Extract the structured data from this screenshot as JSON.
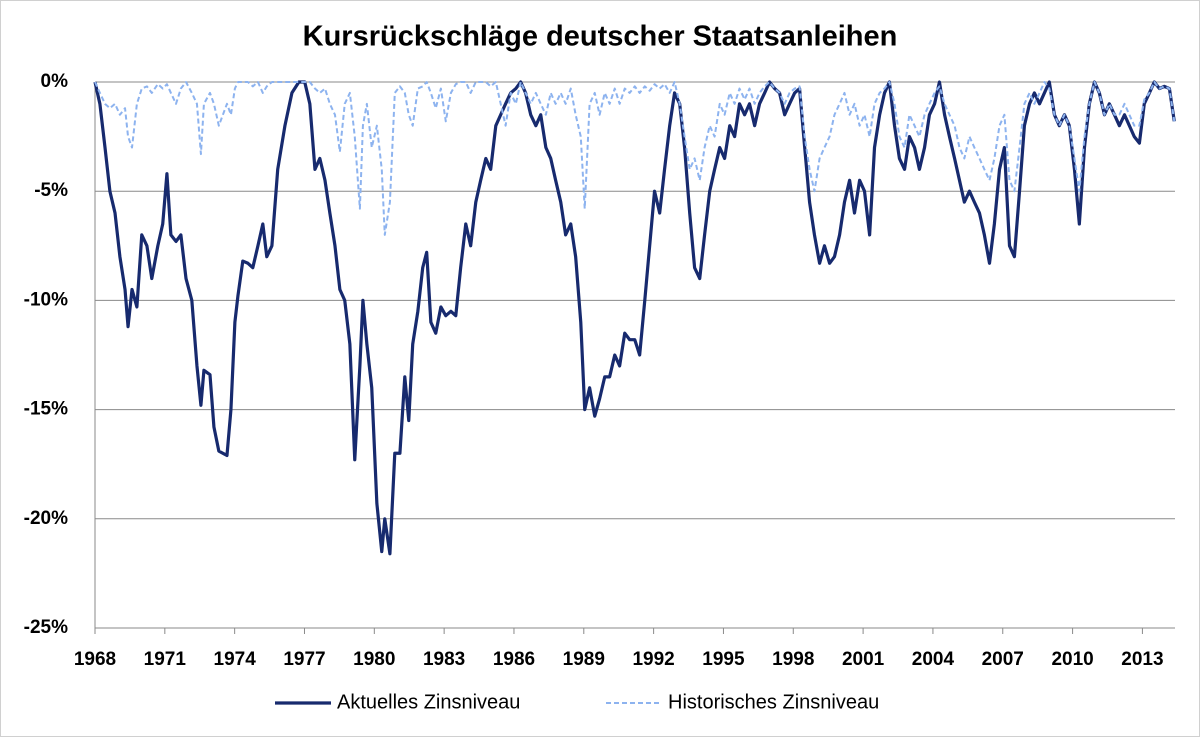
{
  "chart_data": {
    "type": "line",
    "title": "Kursrückschläge deutscher Staatsanleihen",
    "x": [
      1968,
      1968.21,
      1968.43,
      1968.64,
      1968.86,
      1969.07,
      1969.29,
      1969.42,
      1969.59,
      1969.8,
      1970.01,
      1970.23,
      1970.44,
      1970.7,
      1970.91,
      1971.09,
      1971.26,
      1971.48,
      1971.69,
      1971.91,
      1972.16,
      1972.38,
      1972.55,
      1972.68,
      1972.94,
      1973.11,
      1973.32,
      1973.67,
      1973.84,
      1974.01,
      1974.14,
      1974.35,
      1974.57,
      1974.78,
      1975,
      1975.21,
      1975.38,
      1975.6,
      1975.85,
      1976.16,
      1976.46,
      1976.76,
      1977.01,
      1977.23,
      1977.45,
      1977.66,
      1977.88,
      1978.09,
      1978.31,
      1978.52,
      1978.73,
      1978.95,
      1979.16,
      1979.38,
      1979.51,
      1979.68,
      1979.89,
      1980.11,
      1980.32,
      1980.45,
      1980.67,
      1980.88,
      1981.1,
      1981.31,
      1981.48,
      1981.65,
      1981.87,
      1982.08,
      1982.25,
      1982.43,
      1982.64,
      1982.86,
      1983.07,
      1983.29,
      1983.5,
      1983.71,
      1983.93,
      1984.14,
      1984.36,
      1984.57,
      1984.79,
      1985,
      1985.22,
      1985.43,
      1985.64,
      1985.86,
      1986.08,
      1986.29,
      1986.5,
      1986.72,
      1986.94,
      1987.15,
      1987.37,
      1987.58,
      1987.79,
      1988.01,
      1988.22,
      1988.44,
      1988.65,
      1988.87,
      1989.04,
      1989.25,
      1989.47,
      1989.68,
      1989.9,
      1990.11,
      1990.33,
      1990.54,
      1990.76,
      1990.97,
      1991.19,
      1991.4,
      1991.62,
      1991.83,
      1992.04,
      1992.26,
      1992.47,
      1992.69,
      1992.9,
      1993.12,
      1993.33,
      1993.55,
      1993.76,
      1993.98,
      1994.19,
      1994.41,
      1994.62,
      1994.84,
      1995.05,
      1995.27,
      1995.48,
      1995.69,
      1995.91,
      1996.12,
      1996.34,
      1996.55,
      1996.77,
      1996.98,
      1997.2,
      1997.41,
      1997.63,
      1997.84,
      1998.06,
      1998.27,
      1998.49,
      1998.7,
      1998.91,
      1999.13,
      1999.34,
      1999.56,
      1999.77,
      1999.99,
      2000.2,
      2000.42,
      2000.63,
      2000.85,
      2001.06,
      2001.28,
      2001.49,
      2001.71,
      2001.92,
      2002.13,
      2002.35,
      2002.56,
      2002.78,
      2002.99,
      2003.21,
      2003.42,
      2003.64,
      2003.85,
      2004.07,
      2004.28,
      2004.5,
      2004.71,
      2004.93,
      2005.14,
      2005.35,
      2005.57,
      2005.78,
      2006,
      2006.21,
      2006.43,
      2006.64,
      2006.86,
      2007.07,
      2007.29,
      2007.5,
      2007.72,
      2007.93,
      2008.15,
      2008.36,
      2008.58,
      2008.79,
      2009,
      2009.22,
      2009.43,
      2009.65,
      2009.86,
      2010.08,
      2010.29,
      2010.51,
      2010.72,
      2010.94,
      2011.15,
      2011.37,
      2011.58,
      2011.8,
      2012.01,
      2012.23,
      2012.44,
      2012.65,
      2012.87,
      2013.08,
      2013.3,
      2013.51,
      2013.73,
      2013.94,
      2014.16,
      2014.37
    ],
    "series": [
      {
        "name": "Aktuelles Zinsniveau",
        "color": "#172a6e",
        "dashed": false,
        "values": [
          0,
          -1,
          -3,
          -5,
          -6,
          -8,
          -9.5,
          -11.2,
          -9.5,
          -10.3,
          -7,
          -7.5,
          -9,
          -7.5,
          -6.5,
          -4.2,
          -7,
          -7.3,
          -7,
          -9,
          -10,
          -13,
          -14.8,
          -13.2,
          -13.4,
          -15.8,
          -16.9,
          -17.1,
          -15,
          -11,
          -9.8,
          -8.2,
          -8.3,
          -8.5,
          -7.5,
          -6.5,
          -8,
          -7.5,
          -4,
          -2,
          -0.5,
          0,
          0,
          -1,
          -4,
          -3.5,
          -4.5,
          -6,
          -7.5,
          -9.5,
          -10,
          -12,
          -17.3,
          -13,
          -10,
          -12,
          -14,
          -19.3,
          -21.5,
          -20,
          -21.6,
          -17,
          -17,
          -13.5,
          -15.5,
          -12,
          -10.5,
          -8.5,
          -7.8,
          -11,
          -11.5,
          -10.3,
          -10.7,
          -10.5,
          -10.7,
          -8.5,
          -6.5,
          -7.5,
          -5.5,
          -4.5,
          -3.5,
          -4,
          -2,
          -1.5,
          -1,
          -0.5,
          -0.3,
          0,
          -0.5,
          -1.5,
          -2,
          -1.5,
          -3,
          -3.5,
          -4.5,
          -5.5,
          -7,
          -6.5,
          -8,
          -11,
          -15,
          -14,
          -15.3,
          -14.5,
          -13.5,
          -13.5,
          -12.5,
          -13,
          -11.5,
          -11.8,
          -11.8,
          -12.5,
          -10,
          -7.5,
          -5,
          -6,
          -4,
          -2,
          -0.5,
          -1,
          -3,
          -6,
          -8.5,
          -9,
          -7,
          -5,
          -4,
          -3,
          -3.5,
          -2,
          -2.5,
          -1,
          -1.5,
          -1,
          -2,
          -1,
          -0.5,
          0,
          -0.3,
          -0.5,
          -1.5,
          -1,
          -0.5,
          -0.3,
          -3,
          -5.5,
          -7,
          -8.3,
          -7.5,
          -8.3,
          -8,
          -7,
          -5.5,
          -4.5,
          -6,
          -4.5,
          -5,
          -7,
          -3,
          -1.5,
          -0.5,
          0,
          -2,
          -3.5,
          -4,
          -2.5,
          -3,
          -4,
          -3,
          -1.5,
          -1,
          0,
          -1.5,
          -2.5,
          -3.5,
          -4.5,
          -5.5,
          -5,
          -5.5,
          -6,
          -7,
          -8.3,
          -6.5,
          -4,
          -3,
          -7.5,
          -8,
          -5,
          -2,
          -1,
          -0.5,
          -1,
          -0.5,
          0,
          -1.5,
          -2,
          -1.5,
          -2,
          -4,
          -6.5,
          -3,
          -1,
          0,
          -0.5,
          -1.5,
          -1,
          -1.5,
          -2,
          -1.5,
          -2,
          -2.5,
          -2.8,
          -1,
          -0.5,
          0,
          -0.3,
          -0.2,
          -0.3,
          -1.8
        ]
      },
      {
        "name": "Historisches Zinsniveau",
        "color": "#8db3ef",
        "dashed": true,
        "values": [
          0,
          -0.5,
          -1,
          -1.2,
          -1,
          -1.5,
          -1.2,
          -2.5,
          -3,
          -1,
          -0.3,
          -0.2,
          -0.5,
          -0.1,
          -0.3,
          -0.1,
          -0.5,
          -1,
          -0.3,
          0,
          -0.5,
          -1,
          -3.3,
          -1,
          -0.5,
          -1,
          -2,
          -1,
          -1.5,
          -0.3,
          0,
          0,
          0,
          -0.2,
          0,
          -0.5,
          -0.2,
          0,
          0,
          0,
          0,
          0,
          0,
          0,
          -0.3,
          -0.5,
          -0.3,
          -1,
          -1.5,
          -3.2,
          -1,
          -0.5,
          -2.5,
          -5.8,
          -2,
          -1,
          -3,
          -2,
          -4,
          -7,
          -5.5,
          -0.5,
          -0.2,
          -0.5,
          -1.5,
          -2,
          -0.3,
          -0.2,
          0,
          -0.5,
          -1.2,
          -0.3,
          -1.8,
          -0.5,
          -0.1,
          0,
          0,
          -0.5,
          0,
          0,
          0,
          -0.2,
          0,
          -1,
          -2,
          -0.5,
          -1,
          0,
          -0.5,
          -1,
          -0.5,
          -1,
          -1.5,
          -0.5,
          -1,
          -0.5,
          -1,
          -0.3,
          -1.5,
          -2.5,
          -5.8,
          -1,
          -0.5,
          -1.5,
          -0.5,
          -1,
          -0.3,
          -1,
          -0.3,
          -0.5,
          -0.2,
          -0.5,
          -0.2,
          -0.4,
          -0.1,
          -0.3,
          -0.1,
          -0.5,
          0,
          -1,
          -2.5,
          -4,
          -3.5,
          -4.5,
          -3,
          -2,
          -2.5,
          -1,
          -1.5,
          -0.5,
          -1,
          -0.3,
          -0.8,
          -0.3,
          -1,
          -0.5,
          -0.2,
          0,
          -0.3,
          -0.5,
          -1,
          -0.5,
          -0.3,
          -0.2,
          -2.5,
          -4,
          -5,
          -3.5,
          -3,
          -2.5,
          -1.5,
          -1,
          -0.5,
          -1.5,
          -1,
          -2,
          -1.5,
          -2.5,
          -1,
          -0.5,
          -0.3,
          0,
          -1,
          -2.5,
          -3,
          -1.5,
          -2,
          -2.5,
          -1.5,
          -1,
          -0.5,
          -0.2,
          -1,
          -1.5,
          -2,
          -3,
          -3.5,
          -2.5,
          -3,
          -3.5,
          -4,
          -4.5,
          -3.5,
          -2,
          -1.5,
          -4.5,
          -5,
          -3,
          -1,
          -0.5,
          -1,
          -0.5,
          0,
          -0.3,
          -1.5,
          -2,
          -1.5,
          -2,
          -3.5,
          -5,
          -2.5,
          -1,
          0,
          -0.5,
          -1.5,
          -1,
          -1.5,
          -1.5,
          -1,
          -1.5,
          -2,
          -2,
          -0.8,
          -0.5,
          0,
          -0.3,
          -0.2,
          -0.3,
          -1.8
        ]
      }
    ],
    "xlim": [
      1968,
      2014.4
    ],
    "xticks": [
      1968,
      1971,
      1974,
      1977,
      1980,
      1983,
      1986,
      1989,
      1992,
      1995,
      1998,
      2001,
      2004,
      2007,
      2010,
      2013
    ],
    "ylim": [
      -25,
      0
    ],
    "yticks": [
      {
        "value": 0,
        "label": "0%"
      },
      {
        "value": -5,
        "label": "-5%"
      },
      {
        "value": -10,
        "label": "-10%"
      },
      {
        "value": -15,
        "label": "-15%"
      },
      {
        "value": -20,
        "label": "-20%"
      },
      {
        "value": -25,
        "label": "-25%"
      }
    ],
    "grid": true,
    "legend": "bottom"
  }
}
